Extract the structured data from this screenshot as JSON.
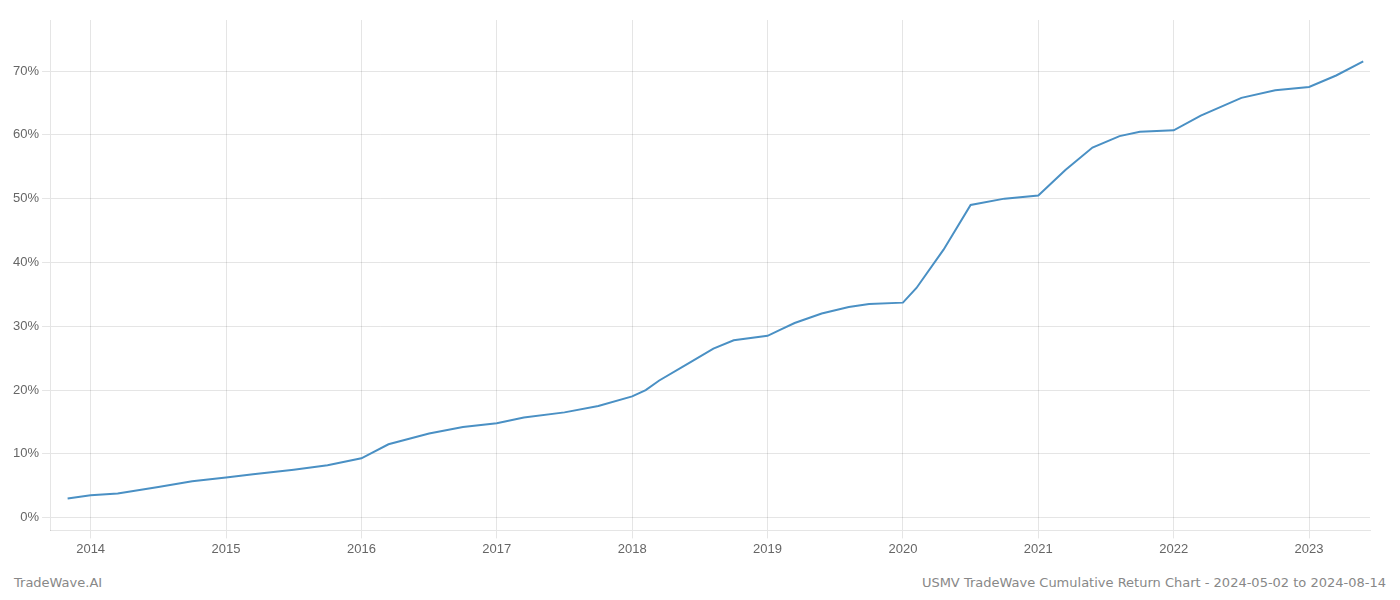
{
  "chart_data": {
    "type": "line",
    "annotations": [
      "TradeWave.AI",
      "USMV TradeWave Cumulative Return Chart - 2024-05-02 to 2024-08-14"
    ],
    "color": "#4a90c4",
    "grid": true,
    "x": [
      2013.83,
      2014.0,
      2014.2,
      2014.5,
      2014.75,
      2015.0,
      2015.2,
      2015.5,
      2015.75,
      2016.0,
      2016.2,
      2016.5,
      2016.75,
      2017.0,
      2017.2,
      2017.5,
      2017.75,
      2018.0,
      2018.1,
      2018.2,
      2018.4,
      2018.6,
      2018.75,
      2019.0,
      2019.1,
      2019.2,
      2019.4,
      2019.6,
      2019.75,
      2020.0,
      2020.1,
      2020.3,
      2020.5,
      2020.75,
      2021.0,
      2021.2,
      2021.4,
      2021.6,
      2021.75,
      2022.0,
      2022.2,
      2022.5,
      2022.75,
      2023.0,
      2023.2,
      2023.4
    ],
    "values": [
      0.03,
      0.035,
      0.038,
      0.048,
      0.057,
      0.063,
      0.068,
      0.075,
      0.082,
      0.093,
      0.115,
      0.132,
      0.142,
      0.148,
      0.157,
      0.165,
      0.175,
      0.19,
      0.2,
      0.215,
      0.24,
      0.265,
      0.278,
      0.285,
      0.295,
      0.305,
      0.32,
      0.33,
      0.335,
      0.337,
      0.36,
      0.42,
      0.49,
      0.5,
      0.505,
      0.545,
      0.58,
      0.598,
      0.605,
      0.607,
      0.63,
      0.658,
      0.67,
      0.675,
      0.693,
      0.715
    ],
    "xlim": [
      2013.7,
      2023.45
    ],
    "xticks": [
      2014,
      2015,
      2016,
      2017,
      2018,
      2019,
      2020,
      2021,
      2022,
      2023
    ],
    "ylim": [
      -0.02,
      0.78
    ],
    "yticks": [
      {
        "value": 0.0,
        "label": "0%"
      },
      {
        "value": 0.1,
        "label": "10%"
      },
      {
        "value": 0.2,
        "label": "20%"
      },
      {
        "value": 0.3,
        "label": "30%"
      },
      {
        "value": 0.4,
        "label": "40%"
      },
      {
        "value": 0.5,
        "label": "50%"
      },
      {
        "value": 0.6,
        "label": "60%"
      },
      {
        "value": 0.7,
        "label": "70%"
      }
    ]
  }
}
